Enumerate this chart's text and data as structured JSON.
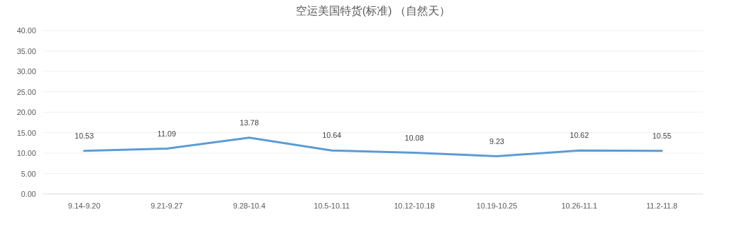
{
  "chart_data": {
    "type": "line",
    "title": "空运美国特货(标准) （自然天）",
    "categories": [
      "9.14-9.20",
      "9.21-9.27",
      "9.28-10.4",
      "10.5-10.11",
      "10.12-10.18",
      "10.19-10.25",
      "10.26-11.1",
      "11.2-11.8"
    ],
    "series": [
      {
        "color": "#5b9bd5",
        "values": [
          10.53,
          11.09,
          13.78,
          10.64,
          10.08,
          9.23,
          10.62,
          10.55
        ]
      }
    ],
    "ylim": [
      0,
      40
    ],
    "yticks": [
      {
        "value": 0,
        "label": "0.00"
      },
      {
        "value": 5,
        "label": "5.00"
      },
      {
        "value": 10,
        "label": "10.00"
      },
      {
        "value": 15,
        "label": "15.00"
      },
      {
        "value": 20,
        "label": "20.00"
      },
      {
        "value": 25,
        "label": "25.00"
      },
      {
        "value": 30,
        "label": "30.00"
      },
      {
        "value": 35,
        "label": "35.00"
      },
      {
        "value": 40,
        "label": "40.00"
      }
    ],
    "grid": "y",
    "data_labels": true,
    "marker": "none",
    "line_style": "solid"
  }
}
